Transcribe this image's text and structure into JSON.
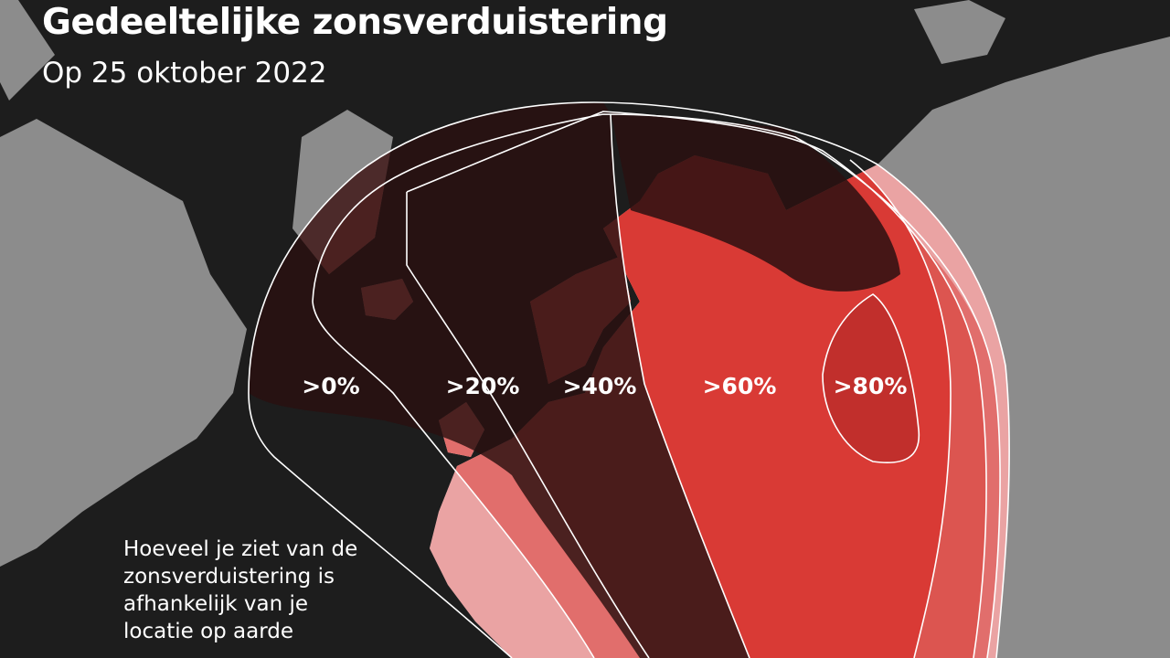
{
  "title": "Gedeeltelijke zonsverduistering",
  "subtitle": "Op 25 oktober 2022",
  "zones": [
    {
      "label": ">0%",
      "color": "#eaa3a3"
    },
    {
      "label": ">20%",
      "color": "#e16e6c"
    },
    {
      "label": ">40%",
      "color": "#dc5550"
    },
    {
      "label": ">60%",
      "color": "#d93a35"
    },
    {
      "label": ">80%",
      "color": "#c12f2c"
    }
  ],
  "caption_lines": [
    "Hoeveel je ziet van de",
    "zonsverduistering is",
    "afhankelijk van je",
    "locatie op aarde"
  ],
  "colors": {
    "sea": "#1d1d1d",
    "land": "#8c8c8c",
    "night_overlay": "#2a1010",
    "border_line": "#000000"
  }
}
